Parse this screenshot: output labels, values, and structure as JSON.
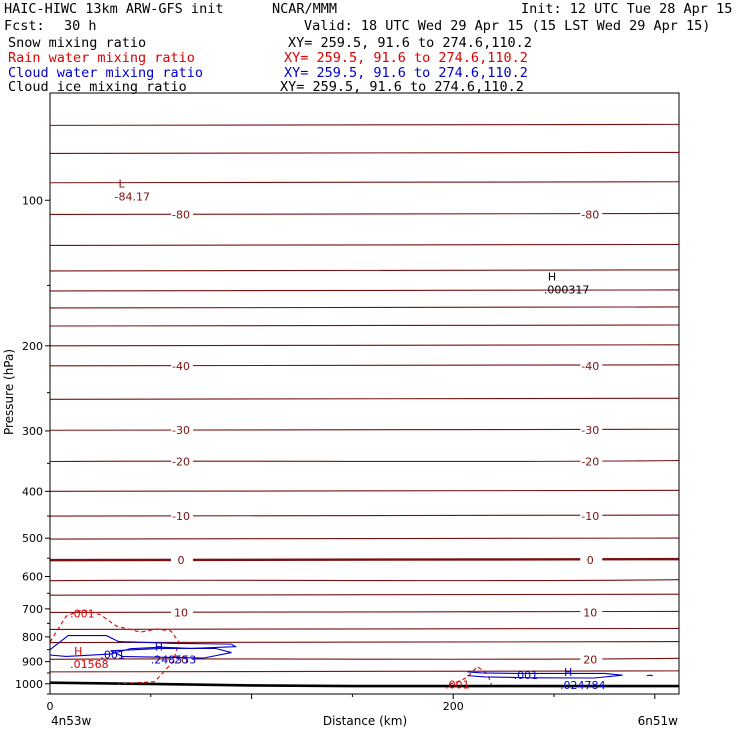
{
  "header": {
    "model": "HAIC-HIWC 13km ARW-GFS init",
    "org": "NCAR/MMM",
    "init": "Init: 12 UTC Tue 28 Apr 15",
    "fcst_label": "Fcst:",
    "fcst_value": "30 h",
    "valid": "Valid: 18 UTC Wed 29 Apr 15 (15 LST Wed 29 Apr 15)"
  },
  "legend": [
    {
      "name": "Snow mixing ratio",
      "xy": "XY= 259.5, 91.6 to 274.6,110.2",
      "color": "#000000"
    },
    {
      "name": "Rain water mixing ratio",
      "xy": "XY= 259.5, 91.6 to 274.6,110.2",
      "color": "#dd0000"
    },
    {
      "name": "Cloud water mixing ratio",
      "xy": "XY= 259.5, 91.6 to 274.6,110.2",
      "color": "#0000cc"
    },
    {
      "name": "Cloud ice mixing ratio",
      "xy": "XY= 259.5, 91.6 to 274.6,110.2",
      "color": "#000000"
    }
  ],
  "chart_data": {
    "type": "line",
    "ylabel": "Pressure (hPa)",
    "xlabel": "Distance (km)",
    "x_range": [
      0,
      312
    ],
    "y_range_hpa": [
      1050,
      60
    ],
    "y_scale": "log",
    "x_ticks": [
      {
        "value": 0,
        "label": "0"
      },
      {
        "value": 200,
        "label": "200"
      }
    ],
    "y_ticks": [
      {
        "value": 100,
        "label": "100"
      },
      {
        "value": 200,
        "label": "200"
      },
      {
        "value": 300,
        "label": "300"
      },
      {
        "value": 400,
        "label": "400"
      },
      {
        "value": 500,
        "label": "500"
      },
      {
        "value": 600,
        "label": "600"
      },
      {
        "value": 700,
        "label": "700"
      },
      {
        "value": 800,
        "label": "800"
      },
      {
        "value": 900,
        "label": "900"
      },
      {
        "value": 1000,
        "label": "1000"
      }
    ],
    "left_endpoint": "4n53w",
    "right_endpoint": "6n51w",
    "terrain_hpa": [
      [
        0,
        995
      ],
      [
        50,
        1001
      ],
      [
        100,
        1008
      ],
      [
        150,
        1011
      ],
      [
        200,
        1011
      ],
      [
        250,
        1011
      ],
      [
        312,
        1011
      ]
    ],
    "temperature_contours": {
      "units": "deg C",
      "color": "#7a1010",
      "levels": [
        {
          "p": 70,
          "label": ""
        },
        {
          "p": 80,
          "label": ""
        },
        {
          "p": 92,
          "label": ""
        },
        {
          "p": 107,
          "label": "-80"
        },
        {
          "p": 124,
          "label": ""
        },
        {
          "p": 140,
          "label": ""
        },
        {
          "p": 154,
          "label": ""
        },
        {
          "p": 167,
          "label": ""
        },
        {
          "p": 182,
          "label": ""
        },
        {
          "p": 200,
          "label": ""
        },
        {
          "p": 220,
          "label": "-40"
        },
        {
          "p": 258,
          "label": ""
        },
        {
          "p": 299,
          "label": "-30"
        },
        {
          "p": 347,
          "label": "-20"
        },
        {
          "p": 400,
          "label": ""
        },
        {
          "p": 450,
          "label": "-10"
        },
        {
          "p": 502,
          "label": ""
        },
        {
          "p": 555,
          "label": "0",
          "bold": true
        },
        {
          "p": 612,
          "label": ""
        },
        {
          "p": 656,
          "label": ""
        },
        {
          "p": 712,
          "label": "10"
        },
        {
          "p": 772,
          "label": ""
        },
        {
          "p": 822,
          "label": ""
        },
        {
          "p": 890,
          "label": "20"
        },
        {
          "p": 945,
          "label": ""
        }
      ]
    },
    "extrema": [
      {
        "kind": "L",
        "value": "-84.17",
        "x": 32,
        "p": 95
      },
      {
        "kind": "H",
        "value": ".000317",
        "x": 245,
        "p": 148
      },
      {
        "kind": "H",
        "value": ".248553",
        "x": 50,
        "p": 862
      },
      {
        "kind": "H",
        "value": ".01568",
        "x": 10,
        "p": 880
      },
      {
        "kind": "H",
        "value": ".024784",
        "x": 253,
        "p": 972
      }
    ],
    "rain_contours": [
      {
        "label": ".001",
        "x": 10,
        "p": 715
      },
      {
        "label": ".001",
        "x": 196,
        "p": 1003
      }
    ],
    "cloud_water_contours": [
      {
        "label": ".001",
        "x": 25,
        "p": 870
      },
      {
        "label": ".001",
        "x": 230,
        "p": 960
      }
    ]
  }
}
